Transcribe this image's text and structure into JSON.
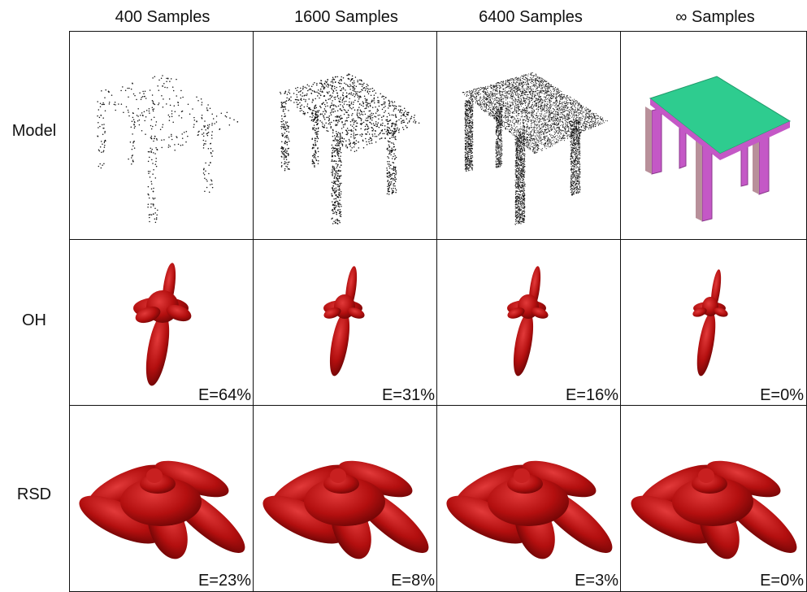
{
  "columns": [
    "400 Samples",
    "1600 Samples",
    "6400 Samples",
    "∞ Samples"
  ],
  "rows": [
    "Model",
    "OH",
    "RSD"
  ],
  "errors": {
    "OH": [
      "E=64%",
      "E=31%",
      "E=16%",
      "E=0%"
    ],
    "RSD": [
      "E=23%",
      "E=8%",
      "E=3%",
      "E=0%"
    ]
  },
  "point_samples": [
    400,
    1600,
    6400
  ],
  "colors": {
    "table_top": "#2ecc8f",
    "legs": "#c458c6",
    "glyph": "#b30f0f"
  }
}
